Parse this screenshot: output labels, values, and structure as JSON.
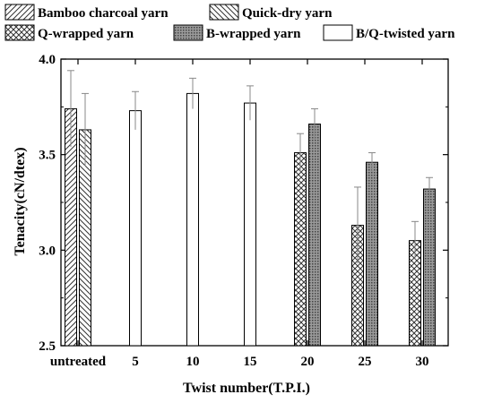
{
  "chart_data": {
    "type": "bar",
    "xlabel": "Twist number(T.P.I.)",
    "ylabel": "Tenacity(cN/dtex)",
    "ylim": [
      2.5,
      4.0
    ],
    "yticks": [
      "2.5",
      "3.0",
      "3.5",
      "4.0"
    ],
    "categories": [
      "untreated",
      "5",
      "10",
      "15",
      "20",
      "25",
      "30"
    ],
    "grid": false,
    "legend_position": "top",
    "series": [
      {
        "name": "Bamboo charcoal yarn",
        "pattern": "forward-hatch",
        "values": [
          3.74,
          null,
          null,
          null,
          null,
          null,
          null
        ],
        "errors": [
          0.2,
          null,
          null,
          null,
          null,
          null,
          null
        ]
      },
      {
        "name": "Quick-dry yarn",
        "pattern": "back-hatch",
        "values": [
          3.63,
          null,
          null,
          null,
          null,
          null,
          null
        ],
        "errors": [
          0.19,
          null,
          null,
          null,
          null,
          null,
          null
        ]
      },
      {
        "name": "Q-wrapped yarn",
        "pattern": "crosshatch",
        "values": [
          null,
          null,
          null,
          null,
          3.51,
          3.13,
          3.05
        ],
        "errors": [
          null,
          null,
          null,
          null,
          0.1,
          0.2,
          0.1
        ]
      },
      {
        "name": "B-wrapped yarn",
        "pattern": "dots",
        "values": [
          null,
          null,
          null,
          null,
          3.66,
          3.46,
          3.32
        ],
        "errors": [
          null,
          null,
          null,
          null,
          0.08,
          0.05,
          0.06
        ]
      },
      {
        "name": "B/Q-twisted yarn",
        "pattern": "blank",
        "values": [
          null,
          3.73,
          3.82,
          3.77,
          null,
          null,
          null
        ],
        "errors": [
          null,
          0.1,
          0.08,
          0.09,
          null,
          null,
          null
        ]
      }
    ]
  }
}
